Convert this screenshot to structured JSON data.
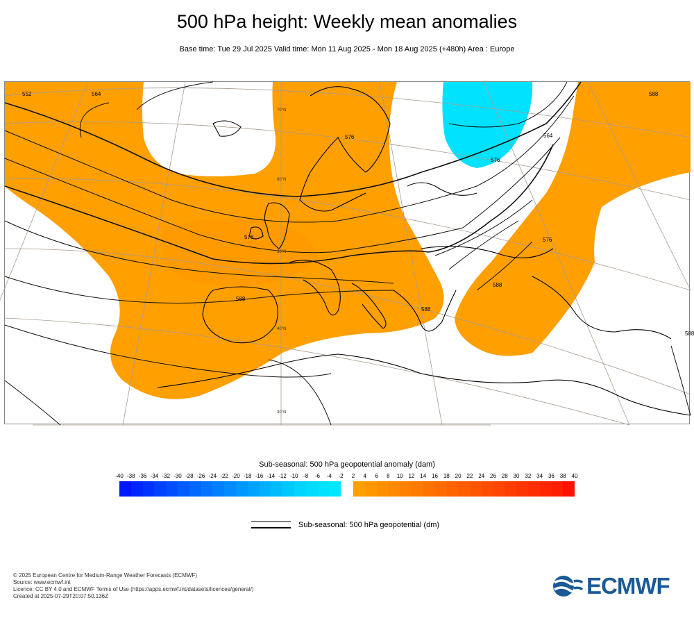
{
  "title": "500 hPa height: Weekly mean anomalies",
  "subtitle": "Base time: Tue 29 Jul 2025 Valid time: Mon 11 Aug 2025 - Mon 18 Aug 2025 (+480h) Area : Europe",
  "map": {
    "area": "Europe",
    "contour_labels": [
      "576",
      "564",
      "552",
      "576",
      "588",
      "588",
      "576",
      "588",
      "564",
      "576",
      "588",
      "588"
    ],
    "lat_labels": [
      "70°N",
      "60°N",
      "50°N",
      "40°N",
      "30°N"
    ],
    "colors": {
      "positive": "#ff9f00",
      "negative": "#00e2ff",
      "land": "#ffffff",
      "coast": "#000000",
      "contour": "#111111",
      "grid": "#a89b8f"
    }
  },
  "legend": {
    "title": "Sub-seasonal: 500 hPa geopotential anomaly (dam)",
    "ticks": [
      "-40",
      "-38",
      "-36",
      "-34",
      "-32",
      "-30",
      "-28",
      "-26",
      "-24",
      "-22",
      "-20",
      "-18",
      "-16",
      "-14",
      "-12",
      "-10",
      "-8",
      "-6",
      "-4",
      "-2",
      "2",
      "4",
      "6",
      "8",
      "10",
      "12",
      "14",
      "16",
      "18",
      "20",
      "22",
      "24",
      "26",
      "28",
      "30",
      "32",
      "34",
      "36",
      "38",
      "40"
    ],
    "negative_colors": [
      "#0016ff",
      "#0024ff",
      "#0032ff",
      "#0040ff",
      "#004eff",
      "#005cff",
      "#0068ff",
      "#0074ff",
      "#0080ff",
      "#008cff",
      "#0098ff",
      "#00a4ff",
      "#00b0ff",
      "#00bcff",
      "#00c8ff",
      "#00d4ff",
      "#00dcff",
      "#00e2ff",
      "#00e8ff"
    ],
    "positive_colors": [
      "#ff9f00",
      "#ff9800",
      "#ff9000",
      "#ff8900",
      "#ff8100",
      "#ff7a00",
      "#ff7200",
      "#ff6b00",
      "#ff6300",
      "#ff5b00",
      "#ff5400",
      "#ff4c00",
      "#ff4500",
      "#ff3d00",
      "#ff3500",
      "#ff2e00",
      "#ff2600",
      "#ff1f00",
      "#ff1200"
    ]
  },
  "contour_legend": {
    "label": "Sub-seasonal: 500 hPa geopotential (dm)"
  },
  "footer": {
    "line1": "© 2025 European Centre for Medium-Range Weather Forecasts (ECMWF)",
    "line2": "Source: www.ecmwf.int",
    "line3": "Licence: CC BY 4.0 and ECMWF Terms of Use (https://apps.ecmwf.int/datasets/licences/general/)",
    "line4": "Created at 2025-07-29T20:07:50.136Z"
  },
  "logo": {
    "text": "ECMWF",
    "color": "#1a5a96"
  }
}
